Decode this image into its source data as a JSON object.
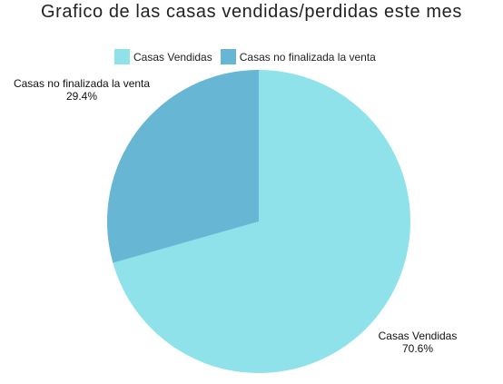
{
  "chart_data": {
    "type": "pie",
    "title": "Grafico de las casas vendidas/perdidas este mes",
    "legend_position": "top",
    "categories": [
      "Casas Vendidas",
      "Casas no finalizada la venta"
    ],
    "values": [
      70.6,
      29.4
    ],
    "value_labels": [
      "70.6%",
      "29.4%"
    ],
    "colors": [
      "#8fe2ea",
      "#66b6d4"
    ]
  }
}
